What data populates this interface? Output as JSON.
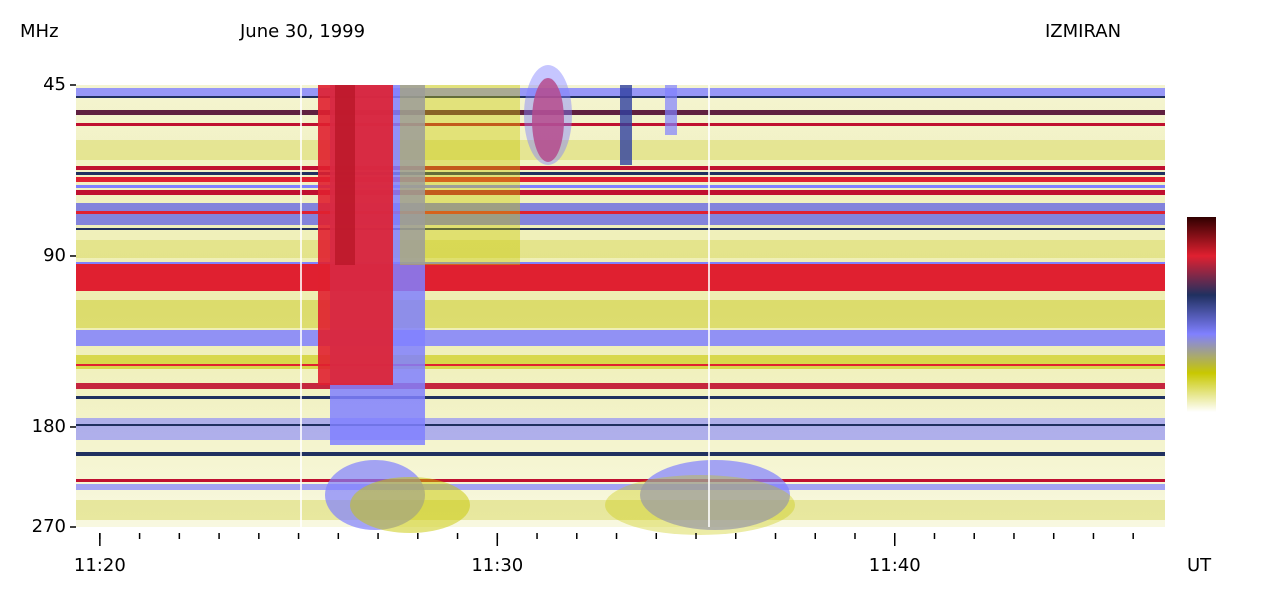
{
  "chart_data": {
    "type": "spectrogram",
    "title": "June 30, 1999",
    "annotation": "IZMIRAN",
    "y_label": "MHz",
    "x_label": "UT",
    "y_scale": "log",
    "y_inverted": true,
    "ylim": [
      45,
      270
    ],
    "yticks": [
      45,
      90,
      180,
      270
    ],
    "xlim": [
      679.4,
      706.8
    ],
    "xticks": [
      {
        "value": 680,
        "label": "11:20"
      },
      {
        "value": 690,
        "label": "11:30"
      },
      {
        "value": 700,
        "label": "11:40"
      }
    ],
    "xminorticks": [
      680,
      681,
      682,
      683,
      684,
      685,
      686,
      687,
      688,
      689,
      690,
      691,
      692,
      693,
      694,
      695,
      696,
      697,
      698,
      699,
      700,
      701,
      702,
      703,
      704,
      705,
      706
    ],
    "colorscale": [
      "#300000",
      "#e02030",
      "#203060",
      "#8080ff",
      "#c8c800",
      "#ffffff"
    ]
  }
}
